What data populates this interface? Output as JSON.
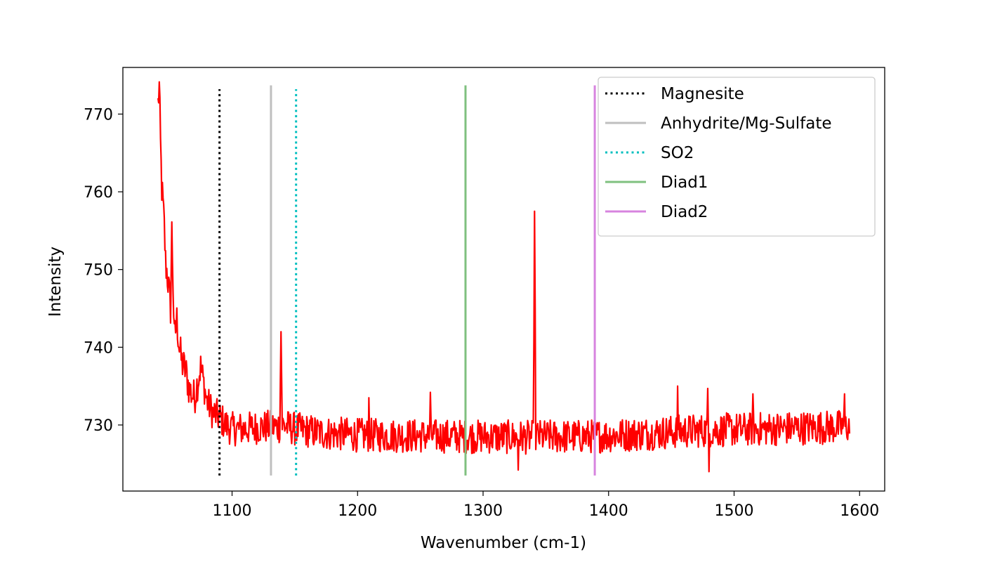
{
  "chart_data": {
    "type": "line",
    "title": "",
    "xlabel": "Wavenumber (cm-1)",
    "ylabel": "Intensity",
    "xlim": [
      1013,
      1620
    ],
    "ylim": [
      721.5,
      776
    ],
    "xticks": [
      1100,
      1200,
      1300,
      1400,
      1500,
      1600
    ],
    "yticks": [
      730,
      740,
      750,
      760,
      770
    ],
    "grid": false,
    "legend_position": "top-right",
    "spectrum": {
      "color": "#ff0000",
      "x_start": 1041,
      "x_end": 1592,
      "anchors": [
        [
          1041,
          771.3
        ],
        [
          1042,
          773.5
        ],
        [
          1043,
          766.0
        ],
        [
          1044,
          760.5
        ],
        [
          1045,
          758.2
        ],
        [
          1046,
          755.5
        ],
        [
          1047,
          751.0
        ],
        [
          1049,
          748.5
        ],
        [
          1051,
          745.0
        ],
        [
          1052,
          755.0
        ],
        [
          1054,
          741.0
        ],
        [
          1056,
          743.5
        ],
        [
          1058,
          740.0
        ],
        [
          1060,
          738.0
        ],
        [
          1063,
          737.0
        ],
        [
          1066,
          734.5
        ],
        [
          1070,
          733.5
        ],
        [
          1075,
          737.5
        ],
        [
          1080,
          733.0
        ],
        [
          1085,
          731.5
        ],
        [
          1090,
          731.0
        ],
        [
          1095,
          730.0
        ],
        [
          1100,
          729.5
        ],
        [
          1110,
          729.5
        ],
        [
          1120,
          729.7
        ],
        [
          1138,
          729.8
        ],
        [
          1139,
          742.0
        ],
        [
          1140,
          730.0
        ],
        [
          1150,
          729.5
        ],
        [
          1170,
          729.0
        ],
        [
          1200,
          728.7
        ],
        [
          1250,
          728.6
        ],
        [
          1300,
          728.5
        ],
        [
          1340,
          728.4
        ],
        [
          1341,
          757.5
        ],
        [
          1342,
          728.5
        ],
        [
          1380,
          728.5
        ],
        [
          1420,
          728.8
        ],
        [
          1460,
          729.2
        ],
        [
          1500,
          729.4
        ],
        [
          1550,
          729.6
        ],
        [
          1592,
          729.8
        ]
      ],
      "noise_amplitude": 2.2,
      "spikes": [
        [
          1209,
          733.5
        ],
        [
          1258,
          734.2
        ],
        [
          1455,
          735.0
        ],
        [
          1479,
          734.7
        ],
        [
          1515,
          734.0
        ],
        [
          1588,
          734.0
        ],
        [
          1480,
          724.0
        ],
        [
          1328,
          724.2
        ]
      ]
    },
    "reference_lines": [
      {
        "name": "Magnesite",
        "x": 1090,
        "color": "#000000",
        "style": "dotted",
        "ymin": 723.5,
        "ymax": 773.2
      },
      {
        "name": "Anhydrite/Mg-Sulfate",
        "x": 1131,
        "color": "#bfbfbf",
        "style": "solid",
        "ymin": 723.5,
        "ymax": 773.7
      },
      {
        "name": "SO2",
        "x": 1151,
        "color": "#00bfbf",
        "style": "dotted",
        "ymin": 723.5,
        "ymax": 773.2
      },
      {
        "name": "Diad1",
        "x": 1286,
        "color": "#7fc07f",
        "style": "solid",
        "ymin": 723.5,
        "ymax": 773.7
      },
      {
        "name": "Diad2",
        "x": 1389,
        "color": "#d784df",
        "style": "solid",
        "ymin": 723.5,
        "ymax": 773.7
      }
    ]
  }
}
